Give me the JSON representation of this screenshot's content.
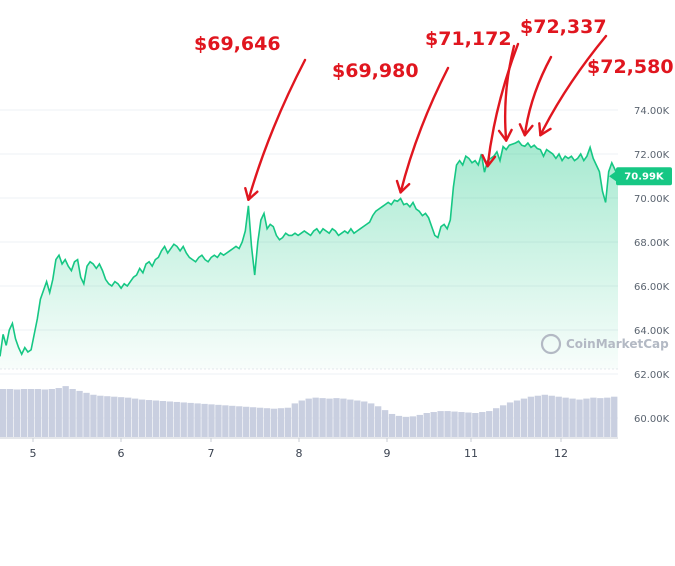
{
  "chart_data": {
    "type": "area",
    "x_ticks": [
      "5",
      "6",
      "7",
      "8",
      "9",
      "11",
      "12"
    ],
    "y_ticks": [
      "74.00K",
      "72.00K",
      "70.00K",
      "68.00K",
      "66.00K",
      "64.00K",
      "62.00K",
      "60.00K"
    ],
    "ylim": [
      59000,
      75000
    ],
    "current_price_label": "70.99K",
    "current_price": 70990,
    "watermark": "CoinMarketCap",
    "colors": {
      "line": "#16c784",
      "area_top": "#16c784",
      "price_tag": "#16c784",
      "volume": "#c9cfe0",
      "annotation": "#e0161f"
    },
    "series": [
      {
        "values": [
          62800,
          63800,
          63300,
          64000,
          64300,
          63600,
          63200,
          62900,
          63200,
          63000,
          63100,
          63800,
          64500,
          65400,
          65800,
          66200,
          65700,
          66300,
          67200,
          67400,
          67000,
          67200,
          66900,
          66700,
          67100,
          67200,
          66400,
          66100,
          66900,
          67100,
          67000,
          66800,
          67000,
          66700,
          66300,
          66100,
          66000,
          66200,
          66100,
          65900,
          66100,
          66000,
          66200,
          66400,
          66500,
          66800,
          66600,
          67000,
          67100,
          66900,
          67200,
          67300,
          67600,
          67800,
          67500,
          67700,
          67900,
          67800,
          67600,
          67800,
          67500,
          67300,
          67200,
          67100,
          67300,
          67400,
          67200,
          67100,
          67300,
          67400,
          67300,
          67500,
          67400,
          67500,
          67600,
          67700,
          67800,
          67700,
          68000,
          68500,
          69646,
          67800,
          66500,
          68000,
          69000,
          69300,
          68600,
          68800,
          68700,
          68300,
          68100,
          68200,
          68400,
          68300,
          68300,
          68400,
          68300,
          68400,
          68500,
          68400,
          68300,
          68500,
          68600,
          68400,
          68600,
          68500,
          68400,
          68600,
          68500,
          68300,
          68400,
          68500,
          68400,
          68600,
          68400,
          68500,
          68600,
          68700,
          68800,
          68900,
          69200,
          69400,
          69500,
          69600,
          69700,
          69800,
          69700,
          69900,
          69850,
          69980,
          69700,
          69750,
          69600,
          69800,
          69500,
          69400,
          69200,
          69300,
          69100,
          68700,
          68300,
          68200,
          68700,
          68800,
          68600,
          69000,
          70500,
          71500,
          71700,
          71500,
          71900,
          71800,
          71600,
          71700,
          71500,
          72000,
          71172,
          71700,
          71800,
          71900,
          72100,
          71700,
          72337,
          72200,
          72400,
          72450,
          72500,
          72580,
          72400,
          72350,
          72500,
          72300,
          72400,
          72250,
          72200,
          71900,
          72200,
          72100,
          72000,
          71800,
          72000,
          71700,
          71900,
          71800,
          71900,
          71700,
          71800,
          72000,
          71700,
          71900,
          72300,
          71800,
          71500,
          71200,
          70300,
          69800,
          71200,
          71600,
          71300,
          70990
        ]
      }
    ],
    "volume": [
      5,
      5,
      4.95,
      5,
      5,
      5,
      4.95,
      5,
      5.1,
      5.3,
      5,
      4.8,
      4.6,
      4.4,
      4.3,
      4.25,
      4.2,
      4.15,
      4.1,
      4.0,
      3.9,
      3.85,
      3.8,
      3.75,
      3.7,
      3.65,
      3.6,
      3.55,
      3.5,
      3.45,
      3.4,
      3.35,
      3.3,
      3.25,
      3.2,
      3.15,
      3.1,
      3.05,
      3.0,
      2.95,
      3.0,
      3.05,
      3.5,
      3.8,
      4.0,
      4.1,
      4.05,
      4.0,
      4.05,
      4.0,
      3.9,
      3.8,
      3.7,
      3.5,
      3.2,
      2.8,
      2.4,
      2.2,
      2.1,
      2.15,
      2.3,
      2.5,
      2.6,
      2.7,
      2.7,
      2.65,
      2.6,
      2.55,
      2.5,
      2.6,
      2.7,
      3.0,
      3.3,
      3.6,
      3.8,
      4.0,
      4.2,
      4.3,
      4.4,
      4.3,
      4.2,
      4.1,
      4.0,
      3.9,
      4.0,
      4.1,
      4.05,
      4.1,
      4.2
    ],
    "annotations": [
      {
        "label": "$69,646",
        "arrows": [
          {
            "index": 80,
            "value": 69646
          }
        ]
      },
      {
        "label": "$69,980",
        "arrows": [
          {
            "index": 129,
            "value": 69980
          }
        ]
      },
      {
        "label": "$71,172",
        "arrows": [
          {
            "index": 157,
            "value": 71172
          }
        ]
      },
      {
        "label": "$72,337",
        "arrows": [
          {
            "index": 163,
            "value": 72337
          },
          {
            "index": 169,
            "value": 72580
          }
        ]
      },
      {
        "label": "$72,580",
        "arrows": [
          {
            "index": 174,
            "value": 72580
          }
        ]
      }
    ]
  }
}
